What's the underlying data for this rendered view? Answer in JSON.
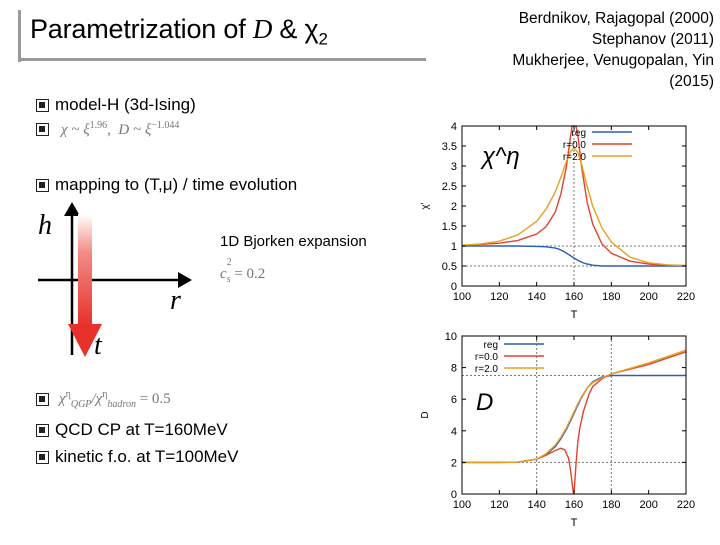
{
  "title": {
    "prefix": "Parametrization of ",
    "var1": "D",
    "amp": " & ",
    "var2": "χ",
    "sub": "2"
  },
  "references": [
    "Berdnikov, Rajagopal (2000)",
    "Stephanov (2011)",
    "Mukherjee, Venugopalan, Yin",
    "(2015)"
  ],
  "bullets": {
    "model_h": "model-H (3d-Ising)",
    "scaling": {
      "chi": "χ ~ ξ",
      "chi_exp": "1.96",
      "comma": ",",
      "d": "D ~ ξ",
      "d_exp": "−1.044"
    },
    "mapping": "mapping to (T,μ) / time evolution",
    "ratio": {
      "lhs": "χ",
      "lhs_sub": "QGP",
      "lhs_sup": "η",
      "slash": "/χ",
      "rhs_sub": "hadron",
      "rhs_sup": "η",
      "eq": " = 0.5"
    },
    "qcd_cp": "QCD CP at T=160MeV",
    "kinetic": "kinetic f.o. at T=100MeV"
  },
  "diagram": {
    "h": "h",
    "r": "r",
    "t": "t",
    "bjorken": "1D Bjorken expansion",
    "cs2": "c",
    "cs2_sub": "s",
    "cs2_sup": "2",
    "cs2_val": " = 0.2"
  },
  "colors": {
    "reg": "#2b5fb3",
    "r00": "#e0442a",
    "r20": "#e8a020",
    "arrow_red": "#e8312a",
    "gray": "#888888"
  },
  "chart_data": [
    {
      "type": "line",
      "title": "",
      "annotation": "χ^η",
      "xlabel": "T",
      "ylabel": "χ'",
      "xlim": [
        100,
        220
      ],
      "ylim": [
        0,
        4
      ],
      "xticks": [
        100,
        120,
        140,
        160,
        180,
        200,
        220
      ],
      "yticks": [
        0,
        0.5,
        1,
        1.5,
        2,
        2.5,
        3,
        3.5,
        4
      ],
      "ref_lines": {
        "horizontal": [
          1,
          0.5
        ],
        "vertical": [
          160
        ]
      },
      "legend": [
        "reg",
        "r=0.0",
        "r=2.0"
      ],
      "series": [
        {
          "name": "reg",
          "x": [
            100,
            110,
            120,
            130,
            140,
            145,
            150,
            152,
            155,
            158,
            160,
            163,
            166,
            170,
            175,
            180,
            190,
            200,
            210,
            220
          ],
          "y": [
            1,
            1,
            1,
            1,
            0.99,
            0.98,
            0.95,
            0.92,
            0.85,
            0.76,
            0.7,
            0.62,
            0.56,
            0.52,
            0.5,
            0.5,
            0.5,
            0.5,
            0.5,
            0.5
          ]
        },
        {
          "name": "r=0.0",
          "x": [
            100,
            110,
            120,
            130,
            140,
            145,
            150,
            153,
            156,
            158,
            159,
            159.7,
            160.3,
            161,
            162,
            164,
            167,
            170,
            175,
            180,
            190,
            200,
            210,
            220
          ],
          "y": [
            1.02,
            1.04,
            1.07,
            1.14,
            1.3,
            1.48,
            1.85,
            2.3,
            3.0,
            3.7,
            4.0,
            4.0,
            4.0,
            4.0,
            3.8,
            3.0,
            2.1,
            1.55,
            1.05,
            0.82,
            0.62,
            0.55,
            0.52,
            0.51
          ]
        },
        {
          "name": "r=2.0",
          "x": [
            100,
            110,
            120,
            130,
            140,
            145,
            150,
            153,
            156,
            158,
            160,
            162,
            164,
            167,
            170,
            175,
            180,
            190,
            200,
            210,
            220
          ],
          "y": [
            1.02,
            1.05,
            1.12,
            1.28,
            1.62,
            1.92,
            2.35,
            2.72,
            3.12,
            3.35,
            3.45,
            3.35,
            3.05,
            2.5,
            2.0,
            1.45,
            1.1,
            0.72,
            0.58,
            0.53,
            0.51
          ]
        }
      ]
    },
    {
      "type": "line",
      "title": "",
      "annotation": "D",
      "xlabel": "T",
      "ylabel": "D",
      "xlim": [
        100,
        220
      ],
      "ylim": [
        0,
        10
      ],
      "xticks": [
        100,
        120,
        140,
        160,
        180,
        200,
        220
      ],
      "yticks": [
        0,
        2,
        4,
        6,
        8,
        10
      ],
      "ref_lines": {
        "horizontal": [
          2,
          7.5
        ],
        "vertical": [
          140,
          180
        ]
      },
      "legend": [
        "reg",
        "r=0.0",
        "r=2.0"
      ],
      "series": [
        {
          "name": "reg",
          "x": [
            100,
            120,
            130,
            140,
            145,
            150,
            153,
            156,
            158,
            160,
            162,
            164,
            167,
            170,
            175,
            180,
            190,
            200,
            220
          ],
          "y": [
            2,
            2,
            2.02,
            2.2,
            2.5,
            3.0,
            3.5,
            4.1,
            4.6,
            5.1,
            5.6,
            6.1,
            6.7,
            7.1,
            7.4,
            7.5,
            7.5,
            7.5,
            7.5
          ]
        },
        {
          "name": "r=0.0",
          "x": [
            100,
            120,
            130,
            140,
            145,
            150,
            153,
            155,
            157,
            158,
            159,
            159.6,
            160,
            160.4,
            161,
            162,
            163,
            165,
            168,
            170,
            175,
            180,
            190,
            200,
            210,
            220
          ],
          "y": [
            2,
            2,
            2.02,
            2.2,
            2.45,
            2.75,
            2.9,
            2.8,
            2.3,
            1.6,
            0.7,
            0.1,
            0.05,
            0.7,
            1.8,
            3.2,
            4.1,
            5.2,
            6.3,
            6.8,
            7.3,
            7.6,
            7.9,
            8.2,
            8.6,
            9.0
          ]
        },
        {
          "name": "r=2.0",
          "x": [
            100,
            120,
            130,
            140,
            145,
            150,
            153,
            156,
            158,
            160,
            162,
            164,
            167,
            170,
            175,
            180,
            190,
            200,
            210,
            220
          ],
          "y": [
            2,
            2,
            2.02,
            2.2,
            2.55,
            3.1,
            3.6,
            4.2,
            4.7,
            5.2,
            5.7,
            6.15,
            6.7,
            7.05,
            7.35,
            7.6,
            7.95,
            8.3,
            8.7,
            9.1
          ]
        }
      ]
    }
  ]
}
